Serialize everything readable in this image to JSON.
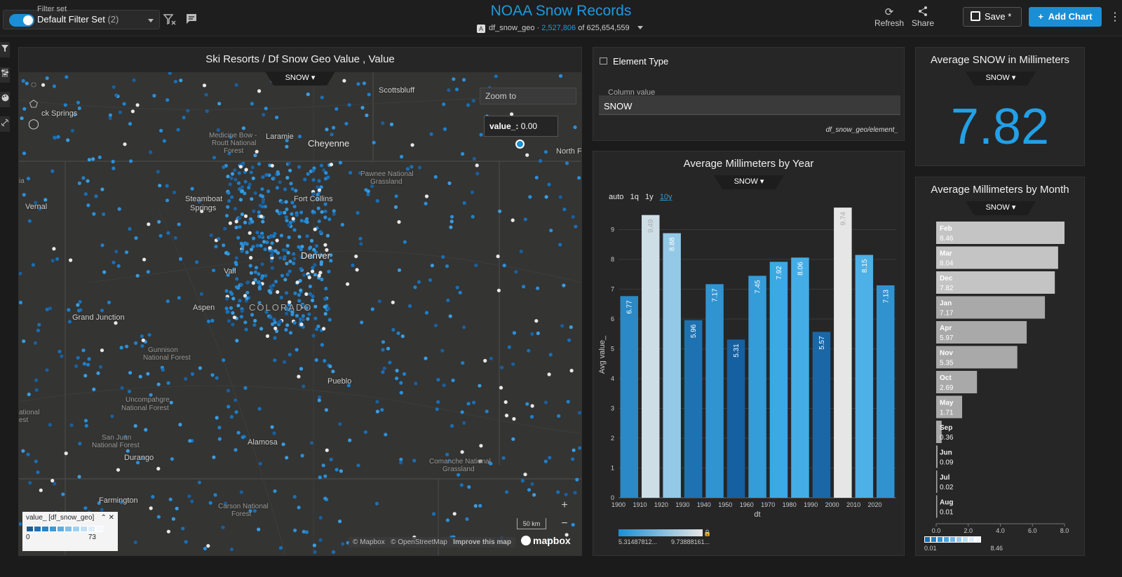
{
  "header": {
    "filter_set_label": "Filter set",
    "filter_set_value": "Default Filter Set",
    "filter_set_count": "(2)",
    "title": "NOAA Snow Records",
    "datasource": "df_snow_geo",
    "datasource_icon": "A",
    "filtered_count": "2,527,806",
    "of_text": "of 625,654,559",
    "refresh_label": "Refresh",
    "share_label": "Share",
    "save_label": "Save *",
    "add_chart_label": "Add Chart"
  },
  "map_panel": {
    "title": "Ski Resorts / Df Snow Geo Value , Value",
    "measure": "SNOW",
    "zoom_to": "Zoom to",
    "tooltip_key": "value_:",
    "tooltip_value": "0.00",
    "legend_title": "value_ [df_snow_geo]",
    "legend_min": "0",
    "legend_max": "73",
    "scale": "50 km",
    "attribution_mapbox": "© Mapbox",
    "attribution_osm": "© OpenStreetMap",
    "improve": "Improve this map",
    "logo": "mapbox",
    "labels": {
      "springs": "ck Springs",
      "scottsbluff": "Scottsbluff",
      "medicine_bow": "Medicine Bow -",
      "routt": "Routt National",
      "forest1": "Forest",
      "laramie": "Laramie",
      "cheyenne": "Cheyenne",
      "north": "North F",
      "pawnee": "Pawnee National",
      "grassland1": "Grassland",
      "vernal": "Vernal",
      "steamboat": "Steamboat",
      "springs2": "Springs",
      "fort_collins": "Fort Collins",
      "denver": "Denver",
      "vail": "Vail",
      "aspen": "Aspen",
      "colorado": "COLORADO",
      "grand_junction": "Grand Junction",
      "gunnison": "Gunnison",
      "national_forest": "National Forest",
      "pueblo": "Pueblo",
      "uncompahgre": "Uncompahgre",
      "national_forest2": "National Forest",
      "sanjuan": "San Juan",
      "national_forest3": "National Forest",
      "alamosa": "Alamosa",
      "durango": "Durango",
      "comanche": "Comanche National",
      "grassland2": "Grassland",
      "farmington": "Farmington",
      "carson": "Carson National",
      "forest2": "Forest",
      "national_left": "ational",
      "st_left": "est",
      "ia_left": "ia"
    }
  },
  "element_panel": {
    "title": "Element Type",
    "column_label": "Column value",
    "column_value": "SNOW",
    "source": "df_snow_geo/element_"
  },
  "year_panel": {
    "title": "Average Millimeters by Year",
    "measure": "SNOW",
    "granularity": [
      "auto",
      "1q",
      "1y",
      "10y"
    ],
    "color_min": "5.31487812...",
    "color_max": "9.73888161..."
  },
  "kpi_panel": {
    "title": "Average SNOW in Millimeters",
    "measure": "SNOW",
    "value": "7.82"
  },
  "month_panel": {
    "title": "Average Millimeters by Month",
    "measure": "SNOW",
    "legend_min": "0.01",
    "legend_max": "8.46"
  },
  "chart_data": [
    {
      "type": "bar",
      "title": "Average Millimeters by Year",
      "xlabel": "dt",
      "ylabel": "Avg value_",
      "categories": [
        "1900",
        "1910",
        "1920",
        "1930",
        "1940",
        "1950",
        "1960",
        "1970",
        "1980",
        "1990",
        "2000",
        "2010",
        "2020"
      ],
      "values": [
        6.77,
        9.49,
        8.88,
        5.96,
        7.17,
        5.31,
        7.45,
        7.92,
        8.06,
        5.57,
        9.74,
        8.15,
        7.13
      ],
      "labels": [
        "6.77",
        "9.49",
        "8.88",
        "5.96",
        "7.17",
        "5.31",
        "7.45",
        "7.92",
        "8.06",
        "5.57",
        "9.74",
        "8.15",
        "7.13"
      ],
      "ylim": [
        0,
        10
      ],
      "yticks": [
        0,
        1,
        2,
        3,
        4,
        5,
        6,
        7,
        8,
        9
      ],
      "grid": true
    },
    {
      "type": "bar",
      "orientation": "horizontal",
      "title": "Average Millimeters by Month",
      "categories": [
        "Feb",
        "Mar",
        "Dec",
        "Jan",
        "Apr",
        "Nov",
        "Oct",
        "May",
        "Sep",
        "Jun",
        "Jul",
        "Aug"
      ],
      "values": [
        8.46,
        8.04,
        7.82,
        7.17,
        5.97,
        5.35,
        2.69,
        1.71,
        0.36,
        0.09,
        0.02,
        0.01
      ],
      "labels": [
        "8.46",
        "8.04",
        "7.82",
        "7.17",
        "5.97",
        "5.35",
        "2.69",
        "1.71",
        "0.36",
        "0.09",
        "0.02",
        "0.01"
      ],
      "xlim": [
        0,
        8.46
      ],
      "xticks": [
        "0.0",
        "2.0",
        "4.0",
        "6.0",
        "8.0"
      ]
    }
  ],
  "colors": {
    "accent": "#1d9ae0",
    "primary_button": "#1a8fd6",
    "kpi": "#22a0e8"
  }
}
